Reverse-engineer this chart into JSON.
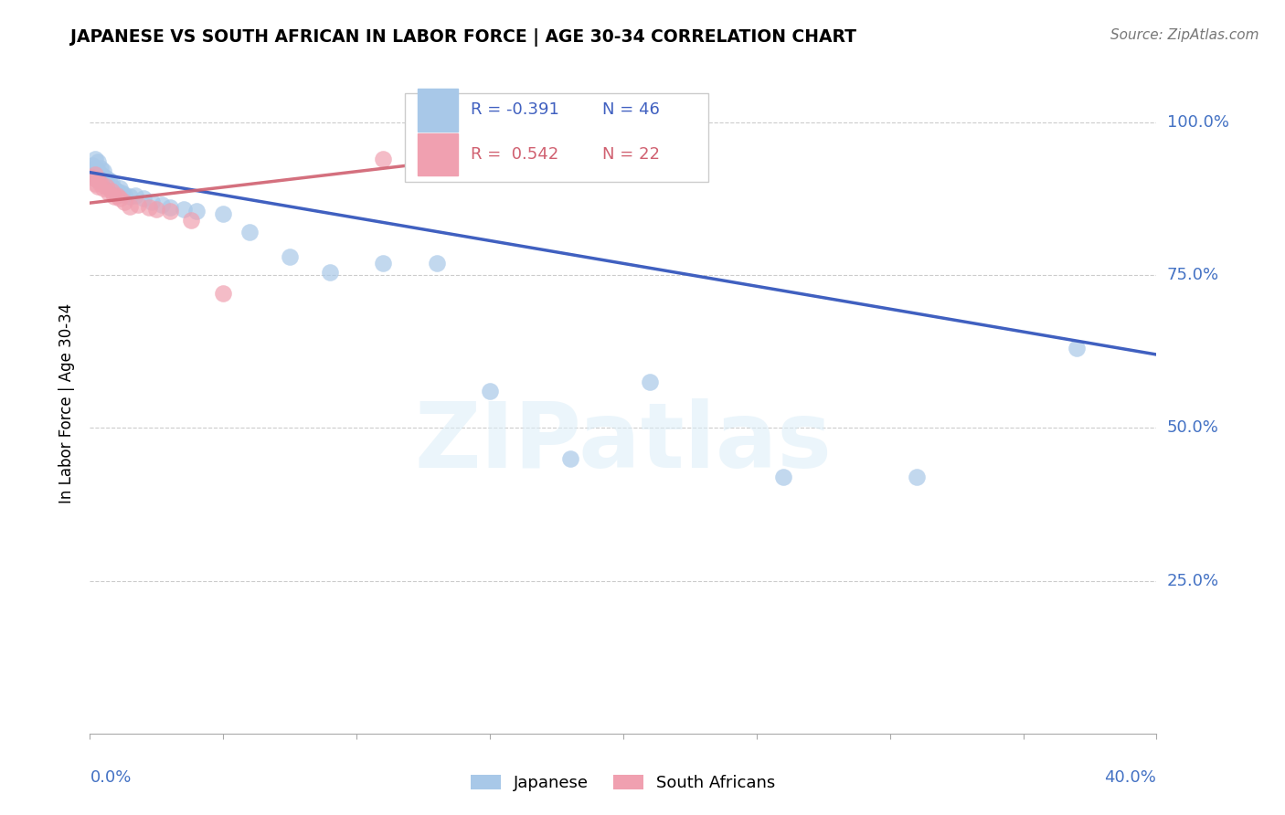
{
  "title": "JAPANESE VS SOUTH AFRICAN IN LABOR FORCE | AGE 30-34 CORRELATION CHART",
  "source": "Source: ZipAtlas.com",
  "ylabel": "In Labor Force | Age 30-34",
  "ytick_labels": [
    "100.0%",
    "75.0%",
    "50.0%",
    "25.0%"
  ],
  "ytick_values": [
    1.0,
    0.75,
    0.5,
    0.25
  ],
  "xmin": 0.0,
  "xmax": 0.4,
  "ymin": 0.0,
  "ymax": 1.08,
  "legend_r_japanese": "-0.391",
  "legend_n_japanese": "46",
  "legend_r_sa": "0.542",
  "legend_n_sa": "22",
  "japanese_color": "#a8c8e8",
  "sa_color": "#f0a0b0",
  "japanese_line_color": "#4060c0",
  "sa_line_color": "#d06070",
  "watermark": "ZIPatlas",
  "japanese_x": [
    0.001,
    0.001,
    0.002,
    0.002,
    0.002,
    0.003,
    0.003,
    0.003,
    0.003,
    0.004,
    0.004,
    0.004,
    0.005,
    0.005,
    0.005,
    0.006,
    0.006,
    0.007,
    0.007,
    0.008,
    0.008,
    0.009,
    0.01,
    0.011,
    0.012,
    0.013,
    0.015,
    0.017,
    0.02,
    0.023,
    0.027,
    0.03,
    0.035,
    0.04,
    0.05,
    0.06,
    0.075,
    0.09,
    0.11,
    0.13,
    0.15,
    0.18,
    0.21,
    0.26,
    0.31,
    0.37
  ],
  "japanese_y": [
    0.92,
    0.93,
    0.91,
    0.925,
    0.94,
    0.905,
    0.915,
    0.92,
    0.935,
    0.91,
    0.915,
    0.925,
    0.905,
    0.912,
    0.92,
    0.9,
    0.908,
    0.895,
    0.905,
    0.895,
    0.902,
    0.89,
    0.888,
    0.892,
    0.885,
    0.882,
    0.878,
    0.88,
    0.875,
    0.87,
    0.865,
    0.86,
    0.858,
    0.855,
    0.85,
    0.82,
    0.78,
    0.755,
    0.77,
    0.77,
    0.56,
    0.45,
    0.575,
    0.42,
    0.42,
    0.63
  ],
  "sa_x": [
    0.001,
    0.002,
    0.002,
    0.003,
    0.003,
    0.004,
    0.005,
    0.006,
    0.007,
    0.008,
    0.009,
    0.01,
    0.011,
    0.013,
    0.015,
    0.018,
    0.022,
    0.025,
    0.03,
    0.038,
    0.05,
    0.11
  ],
  "sa_y": [
    0.91,
    0.9,
    0.915,
    0.895,
    0.905,
    0.9,
    0.892,
    0.895,
    0.885,
    0.888,
    0.878,
    0.88,
    0.875,
    0.87,
    0.862,
    0.865,
    0.86,
    0.858,
    0.855,
    0.84,
    0.72,
    0.94
  ],
  "japanese_trendline_x": [
    0.0,
    0.4
  ],
  "japanese_trendline_y": [
    0.918,
    0.62
  ],
  "sa_trendline_x": [
    0.0,
    0.14
  ],
  "sa_trendline_y": [
    0.868,
    0.94
  ]
}
